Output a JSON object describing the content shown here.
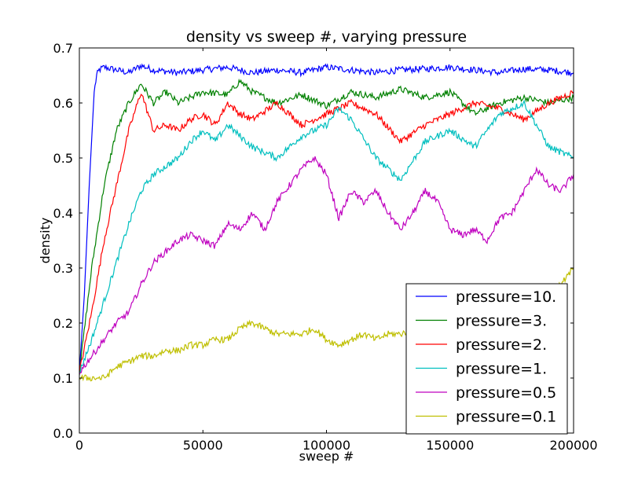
{
  "chart_data": {
    "type": "line",
    "title": "density vs sweep #, varying pressure",
    "xlabel": "sweep #",
    "ylabel": "density",
    "xlim": [
      0,
      200000
    ],
    "ylim": [
      0.0,
      0.7
    ],
    "x_ticks": [
      "0",
      "50000",
      "100000",
      "150000",
      "200000"
    ],
    "y_ticks": [
      "0.0",
      "0.1",
      "0.2",
      "0.3",
      "0.4",
      "0.5",
      "0.6",
      "0.7"
    ],
    "legend_position": "lower-right",
    "grid": false,
    "series": [
      {
        "name": "pressure=10.",
        "color": "#0000ff",
        "x": [
          0,
          2000,
          4000,
          6000,
          7000,
          8000,
          10000,
          15000,
          20000,
          25000,
          30000,
          40000,
          50000,
          60000,
          70000,
          80000,
          90000,
          100000,
          110000,
          120000,
          130000,
          140000,
          150000,
          160000,
          170000,
          180000,
          190000,
          200000
        ],
        "y": [
          0.11,
          0.25,
          0.45,
          0.62,
          0.65,
          0.66,
          0.665,
          0.66,
          0.655,
          0.668,
          0.66,
          0.655,
          0.66,
          0.665,
          0.655,
          0.66,
          0.655,
          0.665,
          0.66,
          0.655,
          0.66,
          0.662,
          0.665,
          0.66,
          0.655,
          0.662,
          0.66,
          0.655
        ]
      },
      {
        "name": "pressure=3.",
        "color": "#008000",
        "x": [
          0,
          5000,
          10000,
          15000,
          20000,
          25000,
          30000,
          35000,
          40000,
          50000,
          60000,
          65000,
          70000,
          80000,
          90000,
          100000,
          110000,
          120000,
          130000,
          140000,
          150000,
          160000,
          170000,
          180000,
          190000,
          200000
        ],
        "y": [
          0.11,
          0.3,
          0.45,
          0.55,
          0.6,
          0.635,
          0.6,
          0.62,
          0.6,
          0.62,
          0.615,
          0.64,
          0.62,
          0.6,
          0.615,
          0.595,
          0.62,
          0.61,
          0.625,
          0.61,
          0.62,
          0.58,
          0.6,
          0.61,
          0.6,
          0.61
        ]
      },
      {
        "name": "pressure=2.",
        "color": "#ff0000",
        "x": [
          0,
          5000,
          10000,
          15000,
          20000,
          25000,
          30000,
          35000,
          40000,
          45000,
          50000,
          55000,
          60000,
          65000,
          70000,
          80000,
          90000,
          100000,
          110000,
          120000,
          130000,
          140000,
          150000,
          160000,
          170000,
          180000,
          190000,
          200000
        ],
        "y": [
          0.11,
          0.22,
          0.35,
          0.45,
          0.55,
          0.62,
          0.55,
          0.56,
          0.55,
          0.57,
          0.58,
          0.56,
          0.6,
          0.58,
          0.57,
          0.6,
          0.56,
          0.58,
          0.6,
          0.58,
          0.53,
          0.56,
          0.58,
          0.6,
          0.59,
          0.57,
          0.6,
          0.62
        ]
      },
      {
        "name": "pressure=1.",
        "color": "#00bfbf",
        "x": [
          0,
          5000,
          10000,
          15000,
          20000,
          25000,
          30000,
          40000,
          45000,
          50000,
          55000,
          60000,
          70000,
          80000,
          90000,
          100000,
          105000,
          110000,
          120000,
          130000,
          140000,
          150000,
          160000,
          170000,
          180000,
          190000,
          200000
        ],
        "y": [
          0.11,
          0.17,
          0.24,
          0.31,
          0.38,
          0.44,
          0.47,
          0.5,
          0.53,
          0.55,
          0.53,
          0.56,
          0.52,
          0.5,
          0.54,
          0.56,
          0.59,
          0.57,
          0.5,
          0.46,
          0.53,
          0.55,
          0.52,
          0.58,
          0.6,
          0.52,
          0.5
        ]
      },
      {
        "name": "pressure=0.5",
        "color": "#bf00bf",
        "x": [
          0,
          5000,
          10000,
          15000,
          20000,
          25000,
          30000,
          35000,
          40000,
          45000,
          50000,
          55000,
          60000,
          65000,
          70000,
          75000,
          80000,
          85000,
          90000,
          95000,
          100000,
          105000,
          110000,
          115000,
          120000,
          125000,
          130000,
          135000,
          140000,
          145000,
          150000,
          155000,
          160000,
          165000,
          170000,
          175000,
          180000,
          185000,
          190000,
          195000,
          200000
        ],
        "y": [
          0.11,
          0.14,
          0.17,
          0.2,
          0.22,
          0.27,
          0.31,
          0.33,
          0.35,
          0.36,
          0.35,
          0.34,
          0.38,
          0.37,
          0.4,
          0.37,
          0.42,
          0.45,
          0.48,
          0.5,
          0.47,
          0.39,
          0.44,
          0.42,
          0.44,
          0.4,
          0.37,
          0.4,
          0.44,
          0.42,
          0.37,
          0.36,
          0.37,
          0.35,
          0.39,
          0.4,
          0.44,
          0.48,
          0.45,
          0.44,
          0.47
        ]
      },
      {
        "name": "pressure=0.1",
        "color": "#bfbf00",
        "x": [
          0,
          5000,
          10000,
          15000,
          20000,
          25000,
          30000,
          35000,
          40000,
          45000,
          50000,
          55000,
          60000,
          65000,
          70000,
          75000,
          80000,
          85000,
          90000,
          95000,
          100000,
          105000,
          110000,
          115000,
          120000,
          125000,
          130000,
          135000,
          140000,
          145000,
          150000,
          155000,
          160000,
          165000,
          170000,
          175000,
          180000,
          185000,
          190000,
          195000,
          200000
        ],
        "y": [
          0.1,
          0.1,
          0.1,
          0.12,
          0.13,
          0.14,
          0.14,
          0.15,
          0.15,
          0.16,
          0.16,
          0.17,
          0.17,
          0.19,
          0.2,
          0.19,
          0.18,
          0.18,
          0.18,
          0.19,
          0.17,
          0.16,
          0.17,
          0.18,
          0.17,
          0.18,
          0.18,
          0.19,
          0.19,
          0.2,
          0.2,
          0.21,
          0.2,
          0.21,
          0.22,
          0.22,
          0.23,
          0.24,
          0.25,
          0.27,
          0.3
        ]
      }
    ]
  }
}
